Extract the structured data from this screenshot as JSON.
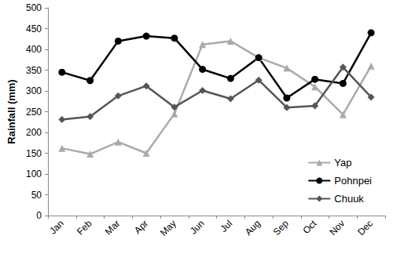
{
  "chart_data": {
    "type": "line",
    "y_label": "Rainfall (mm)",
    "categories": [
      "Jan",
      "Feb",
      "Mar",
      "Apr",
      "May",
      "Jun",
      "Jul",
      "Aug",
      "Sep",
      "Oct",
      "Nov",
      "Dec"
    ],
    "series": [
      {
        "name": "Yap",
        "color": "#aaaaaa",
        "marker": "triangle",
        "line_style": "solid",
        "values": [
          162,
          148,
          177,
          150,
          245,
          412,
          420,
          380,
          355,
          310,
          243,
          360
        ]
      },
      {
        "name": "Pohnpei",
        "color": "#000000",
        "marker": "circle",
        "line_style": "solid",
        "values": [
          345,
          325,
          420,
          432,
          427,
          352,
          330,
          380,
          283,
          328,
          318,
          440
        ]
      },
      {
        "name": "Chuuk",
        "color": "#555555",
        "marker": "diamond",
        "line_style": "solid",
        "values": [
          231,
          238,
          288,
          312,
          261,
          301,
          281,
          326,
          260,
          264,
          357,
          285
        ]
      }
    ],
    "ylim": [
      0,
      500
    ],
    "yticks": [
      0,
      50,
      100,
      150,
      200,
      250,
      300,
      350,
      400,
      450,
      500
    ],
    "grid": false,
    "legend": "lower right"
  }
}
